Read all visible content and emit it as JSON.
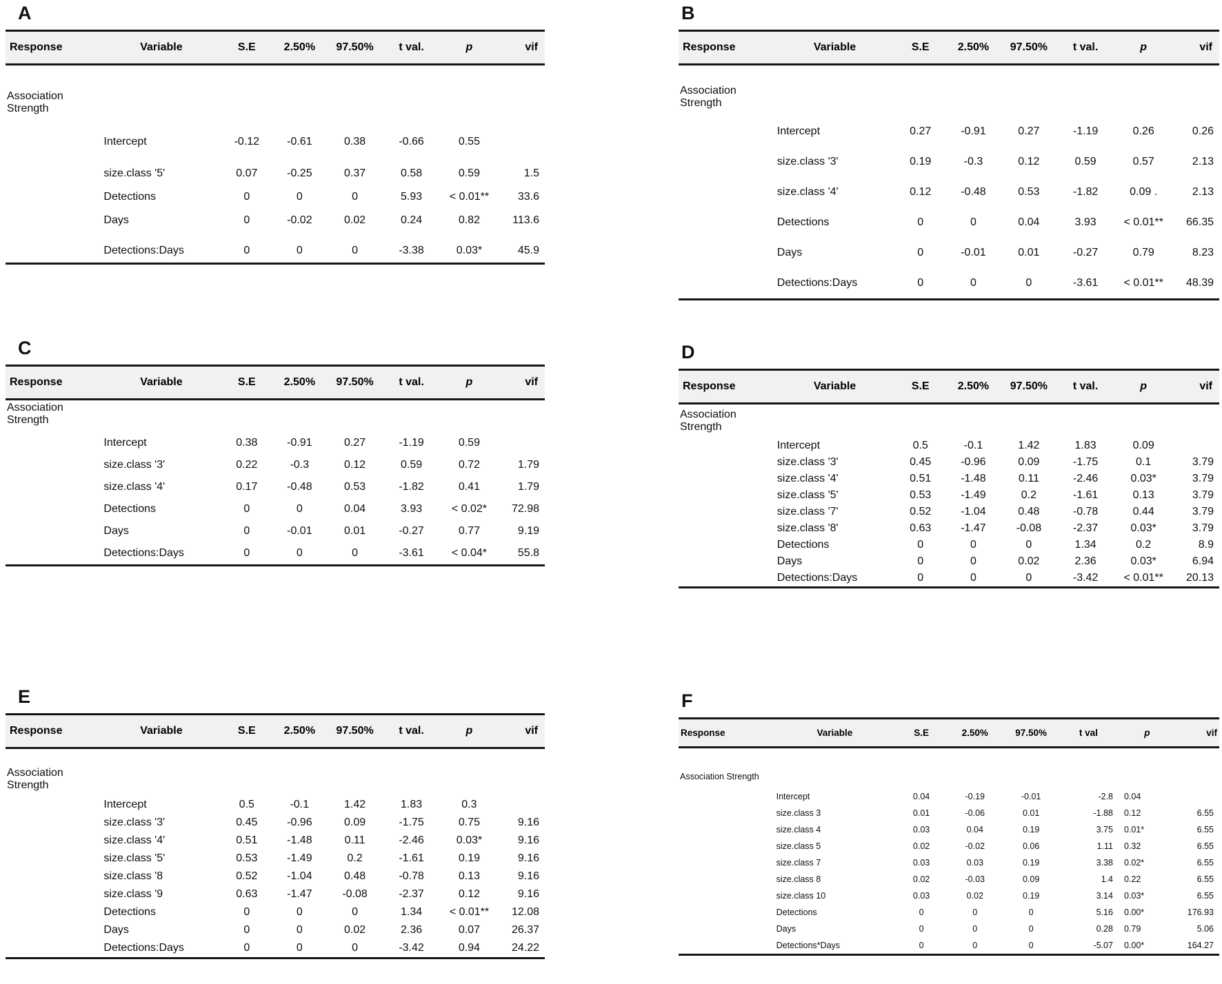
{
  "panels": [
    {
      "label": "A",
      "columns": [
        "Response",
        "Variable",
        "S.E",
        "2.50%",
        "97.50%",
        "t val.",
        "p",
        "vif"
      ],
      "response": "Association Strength",
      "rows": [
        [
          "Intercept",
          "-0.12",
          "-0.61",
          "0.38",
          "-0.66",
          "0.55",
          ""
        ],
        [
          "size.class '5'",
          "0.07",
          "-0.25",
          "0.37",
          "0.58",
          "0.59",
          "1.5"
        ],
        [
          "Detections",
          "0",
          "0",
          "0",
          "5.93",
          "< 0.01**",
          "33.6"
        ],
        [
          "Days",
          "0",
          "-0.02",
          "0.02",
          "0.24",
          "0.82",
          "113.6"
        ],
        [
          "Detections:Days",
          "0",
          "0",
          "0",
          "-3.38",
          "0.03*",
          "45.9"
        ]
      ]
    },
    {
      "label": "B",
      "columns": [
        "Response",
        "Variable",
        "S.E",
        "2.50%",
        "97.50%",
        "t val.",
        "p",
        "vif"
      ],
      "response": "Association Strength",
      "rows": [
        [
          "Intercept",
          "0.27",
          "-0.91",
          "0.27",
          "-1.19",
          "0.26",
          "0.26"
        ],
        [
          "size.class '3'",
          "0.19",
          "-0.3",
          "0.12",
          "0.59",
          "0.57",
          "2.13"
        ],
        [
          "size.class '4'",
          "0.12",
          "-0.48",
          "0.53",
          "-1.82",
          "0.09 .",
          "2.13"
        ],
        [
          "Detections",
          "0",
          "0",
          "0.04",
          "3.93",
          "< 0.01**",
          "66.35"
        ],
        [
          "Days",
          "0",
          "-0.01",
          "0.01",
          "-0.27",
          "0.79",
          "8.23"
        ],
        [
          "Detections:Days",
          "0",
          "0",
          "0",
          "-3.61",
          "< 0.01**",
          "48.39"
        ]
      ]
    },
    {
      "label": "C",
      "columns": [
        "Response",
        "Variable",
        "S.E",
        "2.50%",
        "97.50%",
        "t val.",
        "p",
        "vif"
      ],
      "response": "Association Strength",
      "rows": [
        [
          "Intercept",
          "0.38",
          "-0.91",
          "0.27",
          "-1.19",
          "0.59",
          ""
        ],
        [
          "size.class '3'",
          "0.22",
          "-0.3",
          "0.12",
          "0.59",
          "0.72",
          "1.79"
        ],
        [
          "size.class '4'",
          "0.17",
          "-0.48",
          "0.53",
          "-1.82",
          "0.41",
          "1.79"
        ],
        [
          "Detections",
          "0",
          "0",
          "0.04",
          "3.93",
          "< 0.02*",
          "72.98"
        ],
        [
          "Days",
          "0",
          "-0.01",
          "0.01",
          "-0.27",
          "0.77",
          "9.19"
        ],
        [
          "Detections:Days",
          "0",
          "0",
          "0",
          "-3.61",
          "< 0.04*",
          "55.8"
        ]
      ]
    },
    {
      "label": "D",
      "columns": [
        "Response",
        "Variable",
        "S.E",
        "2.50%",
        "97.50%",
        "t val.",
        "p",
        "vif"
      ],
      "response": "Association Strength",
      "rows": [
        [
          "Intercept",
          "0.5",
          "-0.1",
          "1.42",
          "1.83",
          "0.09",
          ""
        ],
        [
          "size.class '3'",
          "0.45",
          "-0.96",
          "0.09",
          "-1.75",
          "0.1",
          "3.79"
        ],
        [
          "size.class '4'",
          "0.51",
          "-1.48",
          "0.11",
          "-2.46",
          "0.03*",
          "3.79"
        ],
        [
          "size.class '5'",
          "0.53",
          "-1.49",
          "0.2",
          "-1.61",
          "0.13",
          "3.79"
        ],
        [
          "size.class '7'",
          "0.52",
          "-1.04",
          "0.48",
          "-0.78",
          "0.44",
          "3.79"
        ],
        [
          "size.class '8'",
          "0.63",
          "-1.47",
          "-0.08",
          "-2.37",
          "0.03*",
          "3.79"
        ],
        [
          "Detections",
          "0",
          "0",
          "0",
          "1.34",
          "0.2",
          "8.9"
        ],
        [
          "Days",
          "0",
          "0",
          "0.02",
          "2.36",
          "0.03*",
          "6.94"
        ],
        [
          "Detections:Days",
          "0",
          "0",
          "0",
          "-3.42",
          "< 0.01**",
          "20.13"
        ]
      ]
    },
    {
      "label": "E",
      "columns": [
        "Response",
        "Variable",
        "S.E",
        "2.50%",
        "97.50%",
        "t val.",
        "p",
        "vif"
      ],
      "response": "Association Strength",
      "rows": [
        [
          "Intercept",
          "0.5",
          "-0.1",
          "1.42",
          "1.83",
          "0.3",
          ""
        ],
        [
          "size.class '3'",
          "0.45",
          "-0.96",
          "0.09",
          "-1.75",
          "0.75",
          "9.16"
        ],
        [
          "size.class '4'",
          "0.51",
          "-1.48",
          "0.11",
          "-2.46",
          "0.03*",
          "9.16"
        ],
        [
          "size.class '5'",
          "0.53",
          "-1.49",
          "0.2",
          "-1.61",
          "0.19",
          "9.16"
        ],
        [
          "size.class '8",
          "0.52",
          "-1.04",
          "0.48",
          "-0.78",
          "0.13",
          "9.16"
        ],
        [
          "size.class '9",
          "0.63",
          "-1.47",
          "-0.08",
          "-2.37",
          "0.12",
          "9.16"
        ],
        [
          "Detections",
          "0",
          "0",
          "0",
          "1.34",
          "< 0.01**",
          "12.08"
        ],
        [
          "Days",
          "0",
          "0",
          "0.02",
          "2.36",
          "0.07",
          "26.37"
        ],
        [
          "Detections:Days",
          "0",
          "0",
          "0",
          "-3.42",
          "0.94",
          "24.22"
        ]
      ]
    },
    {
      "label": "F",
      "columns": [
        "Response",
        "Variable",
        "S.E",
        "2.50%",
        "97.50%",
        "t val",
        "p",
        "vif"
      ],
      "response": "Association Strength",
      "rows": [
        [
          "Intercept",
          "0.04",
          "-0.19",
          "-0.01",
          "-2.8",
          "0.04",
          ""
        ],
        [
          "size.class 3",
          "0.01",
          "-0.06",
          "0.01",
          "-1.88",
          "0.12",
          "6.55"
        ],
        [
          "size.class 4",
          "0.03",
          "0.04",
          "0.19",
          "3.75",
          "0.01*",
          "6.55"
        ],
        [
          "size.class 5",
          "0.02",
          "-0.02",
          "0.06",
          "1.11",
          "0.32",
          "6.55"
        ],
        [
          "size.class 7",
          "0.03",
          "0.03",
          "0.19",
          "3.38",
          "0.02*",
          "6.55"
        ],
        [
          "size.class 8",
          "0.02",
          "-0.03",
          "0.09",
          "1.4",
          "0.22",
          "6.55"
        ],
        [
          "size.class 10",
          "0.03",
          "0.02",
          "0.19",
          "3.14",
          "0.03*",
          "6.55"
        ],
        [
          "Detections",
          "0",
          "0",
          "0",
          "5.16",
          "0.00*",
          "176.93"
        ],
        [
          "Days",
          "0",
          "0",
          "0",
          "0.28",
          "0.79",
          "5.06"
        ],
        [
          "Detections*Days",
          "0",
          "0",
          "0",
          "-5.07",
          "0.00*",
          "164.27"
        ]
      ]
    }
  ]
}
